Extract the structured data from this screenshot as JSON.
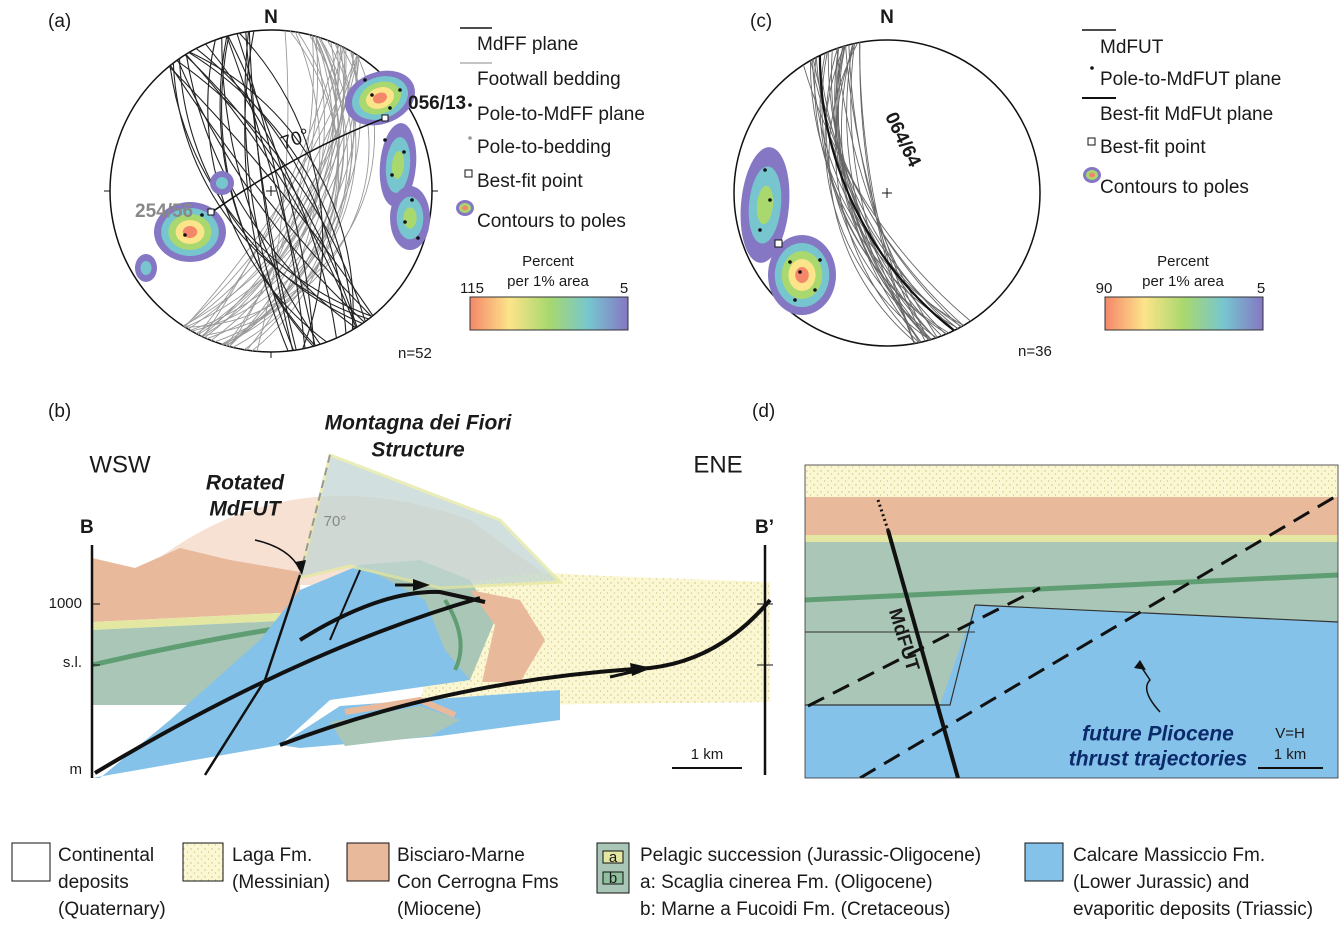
{
  "panels": {
    "a": {
      "label": "(a)",
      "north": "N",
      "legend": [
        "MdFF plane",
        "Footwall bedding",
        "Pole-to-MdFF plane",
        "Pole-to-bedding",
        "Best-fit point",
        "Contours to poles"
      ],
      "scale_title": [
        "Percent",
        "per 1% area"
      ],
      "scale_max": "115",
      "scale_min": "5",
      "count": "n=52",
      "annotations": [
        "056/13",
        "254/56",
        "70°"
      ]
    },
    "c": {
      "label": "(c)",
      "north": "N",
      "legend": [
        "MdFUT",
        "Pole-to-MdFUT plane",
        "Best-fit MdFUt plane",
        "Best-fit point",
        "Contours to poles"
      ],
      "scale_title": [
        "Percent",
        "per 1% area"
      ],
      "scale_max": "90",
      "scale_min": "5",
      "count": "n=36",
      "annotations": [
        "064/64"
      ]
    },
    "b": {
      "label": "(b)",
      "title": [
        "Montagna dei Fiori",
        "Structure"
      ],
      "left_direction": "WSW",
      "right_direction": "ENE",
      "fault_label": [
        "Rotated",
        "MdFUT"
      ],
      "section_start": "B",
      "section_end": "B’",
      "elevation_labels": [
        "1000",
        "s.l.",
        "m"
      ],
      "angle": "70°",
      "scale_bar": "1 km"
    },
    "d": {
      "label": "(d)",
      "fault": "MdFUT",
      "note": [
        "future Pliocene",
        "thrust trajectories"
      ],
      "ratio": "V=H",
      "scale_bar": "1 km"
    }
  },
  "legend": [
    {
      "lines": [
        "Continental",
        "deposits",
        "(Quaternary)"
      ]
    },
    {
      "lines": [
        "Laga Fm.",
        "(Messinian)"
      ]
    },
    {
      "lines": [
        "Bisciaro-Marne",
        "Con Cerrogna Fms",
        "(Miocene)"
      ]
    },
    {
      "lines": [
        "Pelagic succession (Jurassic-Oligocene)",
        "a: Scaglia cinerea Fm. (Oligocene)",
        "b: Marne a Fucoidi Fm. (Cretaceous)"
      ],
      "swatch_labels": [
        "a",
        "b"
      ]
    },
    {
      "lines": [
        "Calcare Massiccio Fm.",
        "(Lower Jurassic) and",
        "evaporitic deposits (Triassic)"
      ]
    }
  ]
}
